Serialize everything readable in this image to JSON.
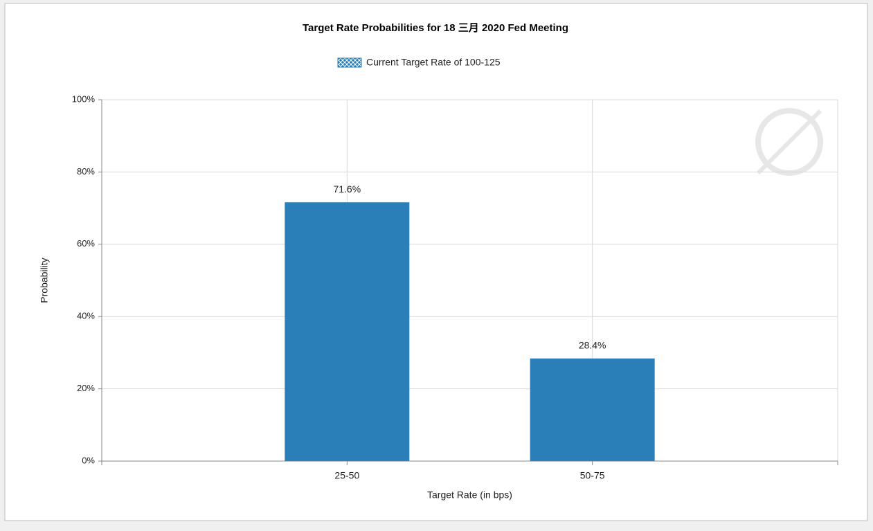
{
  "chart_data": {
    "type": "bar",
    "title": "Target Rate Probabilities for 18 三月 2020  Fed Meeting",
    "x_label": "Target Rate (in bps)",
    "y_label": "Probability",
    "categories": [
      "25-50",
      "50-75"
    ],
    "series": [
      {
        "name": "Current Target Rate of 100-125",
        "color": "#2a7fb8",
        "values": [
          71.6,
          28.4
        ],
        "value_labels": [
          "71.6%",
          "28.4%"
        ]
      }
    ],
    "ylim": [
      0,
      100
    ],
    "yticks": [
      {
        "value": 0,
        "label": "0%"
      },
      {
        "value": 20,
        "label": "20%"
      },
      {
        "value": 40,
        "label": "40%"
      },
      {
        "value": 60,
        "label": "60%"
      },
      {
        "value": 80,
        "label": "80%"
      },
      {
        "value": 100,
        "label": "100%"
      }
    ],
    "grid": true,
    "legend": "top"
  }
}
